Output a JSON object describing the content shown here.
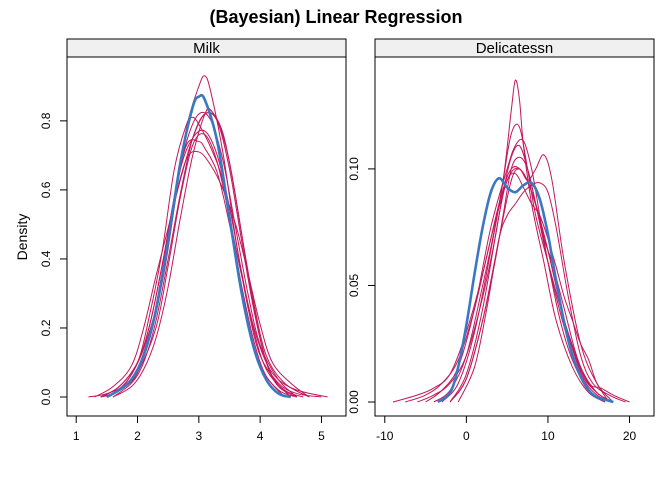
{
  "title": "(Bayesian) Linear Regression",
  "colors": {
    "observed": "#3a78c2",
    "replicate": "#c0185a",
    "strip_fill": "#f0f0f0",
    "frame": "#000000"
  },
  "chart_data": [
    {
      "type": "line",
      "panel": "Milk",
      "title": "Milk",
      "ylabel": "Density",
      "xlabel": "",
      "xlim": [
        0.85,
        5.4
      ],
      "ylim": [
        -0.055,
        0.985
      ],
      "xticks": [
        1,
        2,
        3,
        4,
        5
      ],
      "xtick_labels": [
        "1",
        "2",
        "3",
        "4",
        "5"
      ],
      "yticks": [
        0.0,
        0.2,
        0.4,
        0.6,
        0.8
      ],
      "ytick_labels": [
        "0.0",
        "0.2",
        "0.4",
        "0.6",
        "0.8"
      ],
      "grid": false,
      "observed": {
        "x": [
          1.5,
          1.7,
          1.9,
          2.1,
          2.3,
          2.5,
          2.7,
          2.9,
          3.0,
          3.1,
          3.3,
          3.5,
          3.7,
          3.9,
          4.1,
          4.3,
          4.5
        ],
        "y": [
          0.0,
          0.02,
          0.05,
          0.12,
          0.25,
          0.45,
          0.68,
          0.84,
          0.87,
          0.86,
          0.74,
          0.52,
          0.3,
          0.14,
          0.05,
          0.01,
          0.0
        ]
      },
      "replicates": [
        {
          "x": [
            1.2,
            1.5,
            1.8,
            2.1,
            2.4,
            2.6,
            2.8,
            3.0,
            3.1,
            3.2,
            3.4,
            3.6,
            3.8,
            4.0,
            4.3,
            4.6,
            5.0
          ],
          "y": [
            0.0,
            0.01,
            0.04,
            0.14,
            0.33,
            0.55,
            0.78,
            0.9,
            0.93,
            0.88,
            0.7,
            0.46,
            0.26,
            0.12,
            0.04,
            0.01,
            0.0
          ]
        },
        {
          "x": [
            1.4,
            1.7,
            2.0,
            2.2,
            2.4,
            2.6,
            2.8,
            3.0,
            3.2,
            3.4,
            3.6,
            3.8,
            4.0,
            4.3,
            4.6
          ],
          "y": [
            0.0,
            0.03,
            0.1,
            0.21,
            0.38,
            0.58,
            0.74,
            0.82,
            0.8,
            0.68,
            0.49,
            0.3,
            0.15,
            0.05,
            0.0
          ]
        },
        {
          "x": [
            1.4,
            1.7,
            2.0,
            2.2,
            2.4,
            2.6,
            2.8,
            3.0,
            3.1,
            3.3,
            3.5,
            3.7,
            3.9,
            4.1,
            4.4
          ],
          "y": [
            0.0,
            0.02,
            0.08,
            0.18,
            0.36,
            0.58,
            0.73,
            0.74,
            0.72,
            0.65,
            0.5,
            0.32,
            0.16,
            0.06,
            0.0
          ]
        },
        {
          "x": [
            1.5,
            1.8,
            2.0,
            2.3,
            2.5,
            2.7,
            2.9,
            3.1,
            3.3,
            3.5,
            3.7,
            3.9,
            4.1,
            4.4,
            4.7
          ],
          "y": [
            0.0,
            0.03,
            0.08,
            0.25,
            0.45,
            0.66,
            0.75,
            0.77,
            0.7,
            0.55,
            0.36,
            0.19,
            0.08,
            0.02,
            0.0
          ]
        },
        {
          "x": [
            1.6,
            1.9,
            2.1,
            2.3,
            2.5,
            2.7,
            2.9,
            3.1,
            3.3,
            3.5,
            3.7,
            3.9,
            4.1,
            4.3,
            4.6
          ],
          "y": [
            0.0,
            0.04,
            0.1,
            0.22,
            0.4,
            0.59,
            0.75,
            0.82,
            0.8,
            0.66,
            0.45,
            0.25,
            0.1,
            0.03,
            0.0
          ]
        },
        {
          "x": [
            1.6,
            1.9,
            2.1,
            2.3,
            2.5,
            2.7,
            2.9,
            3.1,
            3.2,
            3.4,
            3.6,
            3.8,
            4.0,
            4.2,
            4.5
          ],
          "y": [
            0.0,
            0.03,
            0.08,
            0.17,
            0.32,
            0.52,
            0.7,
            0.82,
            0.83,
            0.76,
            0.58,
            0.36,
            0.17,
            0.06,
            0.0
          ]
        },
        {
          "x": [
            1.3,
            1.6,
            1.9,
            2.1,
            2.3,
            2.5,
            2.7,
            2.9,
            3.1,
            3.3,
            3.5,
            3.7,
            3.9,
            4.1,
            4.4,
            4.8
          ],
          "y": [
            0.0,
            0.03,
            0.09,
            0.2,
            0.35,
            0.49,
            0.63,
            0.75,
            0.82,
            0.8,
            0.68,
            0.47,
            0.27,
            0.12,
            0.04,
            0.0
          ]
        },
        {
          "x": [
            1.4,
            1.7,
            2.0,
            2.2,
            2.4,
            2.6,
            2.8,
            2.9,
            3.0,
            3.2,
            3.4,
            3.6,
            3.8,
            4.0,
            4.3,
            4.6
          ],
          "y": [
            0.0,
            0.02,
            0.1,
            0.24,
            0.42,
            0.66,
            0.79,
            0.81,
            0.79,
            0.72,
            0.62,
            0.42,
            0.22,
            0.09,
            0.02,
            0.0
          ]
        },
        {
          "x": [
            1.4,
            1.7,
            2.0,
            2.2,
            2.4,
            2.6,
            2.8,
            3.0,
            3.2,
            3.4,
            3.6,
            3.8,
            4.0,
            4.2,
            4.5,
            4.8
          ],
          "y": [
            0.0,
            0.03,
            0.1,
            0.21,
            0.38,
            0.56,
            0.69,
            0.71,
            0.67,
            0.6,
            0.5,
            0.36,
            0.21,
            0.1,
            0.04,
            0.0
          ]
        },
        {
          "x": [
            1.5,
            1.8,
            2.0,
            2.3,
            2.5,
            2.7,
            2.9,
            3.1,
            3.3,
            3.5,
            3.7,
            3.9,
            4.1,
            4.3,
            4.6,
            5.1
          ],
          "y": [
            0.0,
            0.03,
            0.07,
            0.2,
            0.38,
            0.58,
            0.73,
            0.76,
            0.68,
            0.52,
            0.35,
            0.2,
            0.1,
            0.05,
            0.02,
            0.0
          ]
        }
      ]
    },
    {
      "type": "line",
      "panel": "Delicatessn",
      "title": "Delicatessn",
      "ylabel": "",
      "xlabel": "",
      "xlim": [
        -11.2,
        23.0
      ],
      "ylim": [
        -0.006,
        0.148
      ],
      "xticks": [
        -10,
        0,
        10,
        20
      ],
      "xtick_labels": [
        "-10",
        "0",
        "10",
        "20"
      ],
      "yticks": [
        0.0,
        0.05,
        0.1
      ],
      "ytick_labels": [
        "0.00",
        "0.05",
        "0.10"
      ],
      "grid": false,
      "observed": {
        "x": [
          -3.5,
          -2.0,
          -1.0,
          0.0,
          1.0,
          2.0,
          3.0,
          4.0,
          5.0,
          6.0,
          7.0,
          8.0,
          9.0,
          10.0,
          11.0,
          12.0,
          13.0,
          14.0,
          15.0,
          16.0,
          17.0,
          18.0
        ],
        "y": [
          0.0,
          0.004,
          0.015,
          0.033,
          0.055,
          0.075,
          0.09,
          0.096,
          0.092,
          0.09,
          0.093,
          0.094,
          0.087,
          0.072,
          0.052,
          0.034,
          0.02,
          0.011,
          0.005,
          0.002,
          0.001,
          0.0
        ]
      },
      "replicates": [
        {
          "x": [
            -6.0,
            -4.0,
            -2.0,
            0.0,
            2.0,
            3.5,
            4.5,
            5.5,
            6.5,
            7.5,
            8.5,
            10.0,
            12.0,
            14.0,
            16.0,
            18.0
          ],
          "y": [
            0.0,
            0.003,
            0.008,
            0.02,
            0.045,
            0.07,
            0.09,
            0.105,
            0.11,
            0.1,
            0.085,
            0.06,
            0.032,
            0.012,
            0.003,
            0.0
          ]
        },
        {
          "x": [
            -4.0,
            -2.0,
            0.0,
            2.0,
            3.5,
            4.5,
            5.5,
            6.5,
            7.5,
            8.5,
            10.0,
            12.0,
            14.0,
            16.0,
            18.0
          ],
          "y": [
            0.0,
            0.005,
            0.02,
            0.05,
            0.075,
            0.095,
            0.115,
            0.118,
            0.1,
            0.08,
            0.06,
            0.035,
            0.015,
            0.004,
            0.0
          ]
        },
        {
          "x": [
            -3.0,
            -1.0,
            1.0,
            3.0,
            4.5,
            5.5,
            6.0,
            6.5,
            7.0,
            8.0,
            9.5,
            11.0,
            13.0,
            15.0,
            17.0
          ],
          "y": [
            0.0,
            0.008,
            0.03,
            0.065,
            0.095,
            0.125,
            0.138,
            0.13,
            0.11,
            0.085,
            0.06,
            0.035,
            0.015,
            0.004,
            0.0
          ]
        },
        {
          "x": [
            -2.0,
            0.0,
            2.0,
            4.0,
            5.5,
            6.5,
            7.5,
            8.5,
            9.5,
            10.5,
            12.0,
            14.0,
            16.0,
            18.0
          ],
          "y": [
            0.0,
            0.01,
            0.035,
            0.07,
            0.095,
            0.1,
            0.095,
            0.1,
            0.106,
            0.095,
            0.06,
            0.025,
            0.008,
            0.0
          ]
        },
        {
          "x": [
            -2.0,
            0.0,
            2.0,
            4.0,
            5.0,
            6.0,
            7.0,
            8.0,
            9.0,
            10.0,
            11.0,
            12.0,
            13.0,
            14.0,
            15.0,
            16.0,
            17.5
          ],
          "y": [
            0.0,
            0.012,
            0.04,
            0.08,
            0.095,
            0.098,
            0.092,
            0.085,
            0.08,
            0.07,
            0.058,
            0.045,
            0.035,
            0.025,
            0.018,
            0.008,
            0.0
          ]
        },
        {
          "x": [
            -7.5,
            -5.0,
            -3.0,
            -1.0,
            1.0,
            3.0,
            5.0,
            6.5,
            8.0,
            10.0,
            12.0,
            14.0,
            16.0,
            18.0
          ],
          "y": [
            0.0,
            0.003,
            0.008,
            0.018,
            0.04,
            0.07,
            0.095,
            0.1,
            0.09,
            0.065,
            0.035,
            0.013,
            0.004,
            0.0
          ]
        },
        {
          "x": [
            -1.0,
            1.0,
            2.5,
            4.0,
            5.0,
            6.0,
            7.0,
            8.0,
            9.0,
            10.0,
            11.0,
            12.5,
            14.0,
            15.5,
            17.5,
            19.5
          ],
          "y": [
            0.0,
            0.015,
            0.04,
            0.07,
            0.08,
            0.085,
            0.09,
            0.093,
            0.094,
            0.09,
            0.075,
            0.045,
            0.02,
            0.008,
            0.003,
            0.0
          ]
        },
        {
          "x": [
            -5.0,
            -3.0,
            -1.0,
            1.0,
            3.0,
            5.0,
            6.0,
            7.0,
            8.0,
            9.0,
            10.0,
            11.5,
            13.0,
            15.0,
            17.0
          ],
          "y": [
            0.0,
            0.005,
            0.015,
            0.04,
            0.075,
            0.1,
            0.11,
            0.112,
            0.1,
            0.08,
            0.06,
            0.035,
            0.018,
            0.005,
            0.0
          ]
        },
        {
          "x": [
            -9.0,
            -6.0,
            -4.0,
            -2.0,
            0.0,
            2.0,
            4.0,
            5.5,
            7.0,
            8.5,
            10.0,
            12.0,
            14.0,
            16.0,
            18.0
          ],
          "y": [
            0.0,
            0.003,
            0.006,
            0.012,
            0.03,
            0.055,
            0.085,
            0.1,
            0.098,
            0.085,
            0.065,
            0.035,
            0.014,
            0.004,
            0.0
          ]
        },
        {
          "x": [
            -2.0,
            0.0,
            2.0,
            3.5,
            4.5,
            5.5,
            6.5,
            7.5,
            8.5,
            9.5,
            10.5,
            12.0,
            13.5,
            15.0,
            16.5,
            18.0,
            20.0
          ],
          "y": [
            0.0,
            0.01,
            0.035,
            0.06,
            0.08,
            0.1,
            0.105,
            0.1,
            0.085,
            0.07,
            0.06,
            0.04,
            0.02,
            0.008,
            0.006,
            0.003,
            0.0
          ]
        }
      ]
    }
  ]
}
